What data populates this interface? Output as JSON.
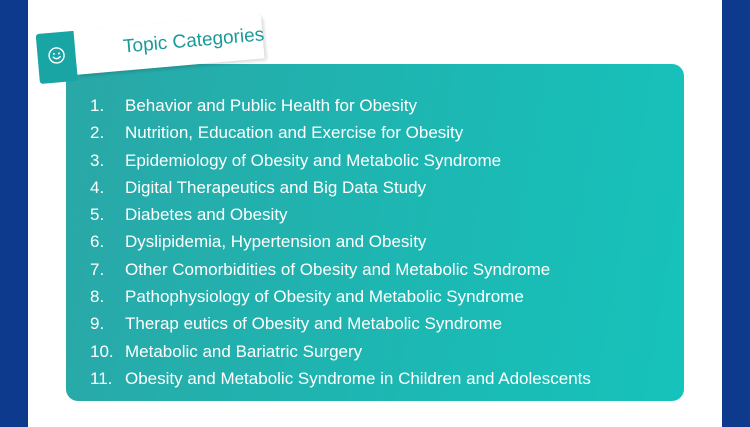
{
  "header": {
    "title": "Topic Categories",
    "icon": "smile-icon"
  },
  "colors": {
    "side_bar": "#0d3a8c",
    "panel_start": "#2aa7a7",
    "panel_end": "#16c3bb",
    "banner_tab": "#1aa5a5",
    "title_text": "#1a9a9a"
  },
  "topics": [
    {
      "num": "1.",
      "label": "Behavior and Public Health for Obesity"
    },
    {
      "num": "2.",
      "label": "Nutrition, Education and Exercise for Obesity"
    },
    {
      "num": "3.",
      "label": "Epidemiology of Obesity and Metabolic Syndrome"
    },
    {
      "num": "4.",
      "label": "Digital Therapeutics and Big Data Study"
    },
    {
      "num": "5.",
      "label": "Diabetes and Obesity"
    },
    {
      "num": "6.",
      "label": "Dyslipidemia, Hypertension and Obesity"
    },
    {
      "num": "7.",
      "label": "Other Comorbidities of Obesity and Metabolic Syndrome"
    },
    {
      "num": "8.",
      "label": "Pathophysiology of Obesity and Metabolic Syndrome"
    },
    {
      "num": "9.",
      "label": "Therap eutics of Obesity and Metabolic Syndrome"
    },
    {
      "num": "10.",
      "label": "Metabolic and Bariatric Surgery"
    },
    {
      "num": "11.",
      "label": "Obesity and Metabolic Syndrome in Children and Adolescents"
    }
  ]
}
